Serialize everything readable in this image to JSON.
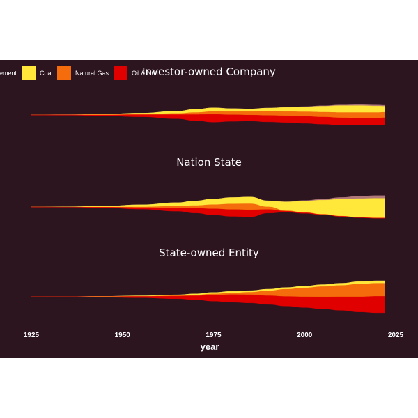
{
  "chart_data": {
    "type": "area",
    "style": "streamgraph",
    "xlabel": "year",
    "xlim": [
      1925,
      2025
    ],
    "x_ticks": [
      "1925",
      "1950",
      "1975",
      "2000",
      "2025"
    ],
    "x": [
      1925,
      1935,
      1945,
      1955,
      1965,
      1970,
      1975,
      1980,
      1985,
      1990,
      1995,
      2000,
      2005,
      2010,
      2015,
      2020,
      2022
    ],
    "legend": {
      "placement": "top-left",
      "entries": [
        {
          "label": "Cement",
          "color": "#b07878"
        },
        {
          "label": "Coal",
          "color": "#ffe83a"
        },
        {
          "label": "Natural Gas",
          "color": "#f46c0b"
        },
        {
          "label": "Oil & NGL",
          "color": "#e00000"
        }
      ]
    },
    "facets": [
      {
        "title": "Investor-owned Company",
        "series": [
          {
            "name": "Cement",
            "color": "#b07878",
            "values": [
              0,
              0,
              0,
              0,
              0,
              0,
              0,
              0,
              0,
              0,
              0,
              0.1,
              0.2,
              0.3,
              0.4,
              0.45,
              0.45
            ]
          },
          {
            "name": "Coal",
            "color": "#ffe83a",
            "values": [
              0.05,
              0.1,
              0.3,
              0.5,
              1.0,
              1.4,
              1.6,
              1.3,
              1.2,
              1.5,
              1.8,
              2.2,
              2.6,
              3.0,
              3.0,
              2.8,
              2.6
            ]
          },
          {
            "name": "Natural Gas",
            "color": "#f46c0b",
            "values": [
              0,
              0,
              0.05,
              0.2,
              0.5,
              0.9,
              1.3,
              1.4,
              1.5,
              1.7,
              1.8,
              2.0,
              2.1,
              2.3,
              2.4,
              2.4,
              2.4
            ]
          },
          {
            "name": "Oil & NGL",
            "color": "#e00000",
            "values": [
              0.05,
              0.15,
              0.4,
              0.9,
              1.8,
              2.6,
              3.3,
              2.8,
              2.6,
              2.8,
              2.9,
              3.0,
              3.1,
              3.1,
              3.1,
              3.0,
              3.0
            ]
          }
        ]
      },
      {
        "title": "Nation State",
        "series": [
          {
            "name": "Cement",
            "color": "#b07878",
            "values": [
              0,
              0,
              0,
              0,
              0,
              0,
              0,
              0,
              0,
              0,
              0.1,
              0.3,
              0.6,
              1.0,
              1.4,
              1.5,
              1.5
            ]
          },
          {
            "name": "Coal",
            "color": "#ffe83a",
            "values": [
              0.05,
              0.2,
              0.5,
              1.2,
              2.0,
              2.6,
              3.2,
              3.6,
              3.8,
              3.4,
              5.0,
              6.5,
              8.0,
              9.5,
              10.5,
              11.0,
              11.0
            ]
          },
          {
            "name": "Natural Gas",
            "color": "#f46c0b",
            "values": [
              0,
              0,
              0.1,
              0.4,
              1.0,
              1.6,
              2.4,
              3.2,
              3.4,
              1.5,
              0.3,
              0.2,
              0.1,
              0.1,
              0.1,
              0.1,
              0.1
            ]
          },
          {
            "name": "Oil & NGL",
            "color": "#e00000",
            "values": [
              0,
              0.05,
              0.3,
              0.8,
              1.8,
              2.6,
              3.4,
              3.8,
              3.9,
              2.0,
              0.5,
              0.3,
              0.2,
              0.1,
              0.1,
              0.1,
              0.1
            ]
          }
        ]
      },
      {
        "title": "State-owned Entity",
        "series": [
          {
            "name": "Cement",
            "color": "#b07878",
            "values": [
              0,
              0,
              0,
              0,
              0,
              0,
              0,
              0,
              0,
              0,
              0,
              0,
              0,
              0,
              0,
              0,
              0
            ]
          },
          {
            "name": "Coal",
            "color": "#ffe83a",
            "values": [
              0,
              0.05,
              0.15,
              0.3,
              0.5,
              0.7,
              0.9,
              1.0,
              1.0,
              1.0,
              1.0,
              1.1,
              1.2,
              1.3,
              1.5,
              1.5,
              1.5
            ]
          },
          {
            "name": "Natural Gas",
            "color": "#f46c0b",
            "values": [
              0,
              0,
              0.05,
              0.1,
              0.3,
              0.5,
              0.8,
              1.0,
              1.5,
              3.0,
              4.5,
              5.5,
              6.3,
              7.0,
              7.8,
              8.0,
              8.0
            ]
          },
          {
            "name": "Oil & NGL",
            "color": "#e00000",
            "values": [
              0.05,
              0.15,
              0.4,
              0.8,
              1.6,
              2.4,
              3.6,
              4.6,
              5.0,
              5.3,
              5.8,
              6.5,
              7.3,
              8.2,
              9.2,
              10.0,
              10.0
            ]
          }
        ]
      }
    ]
  }
}
